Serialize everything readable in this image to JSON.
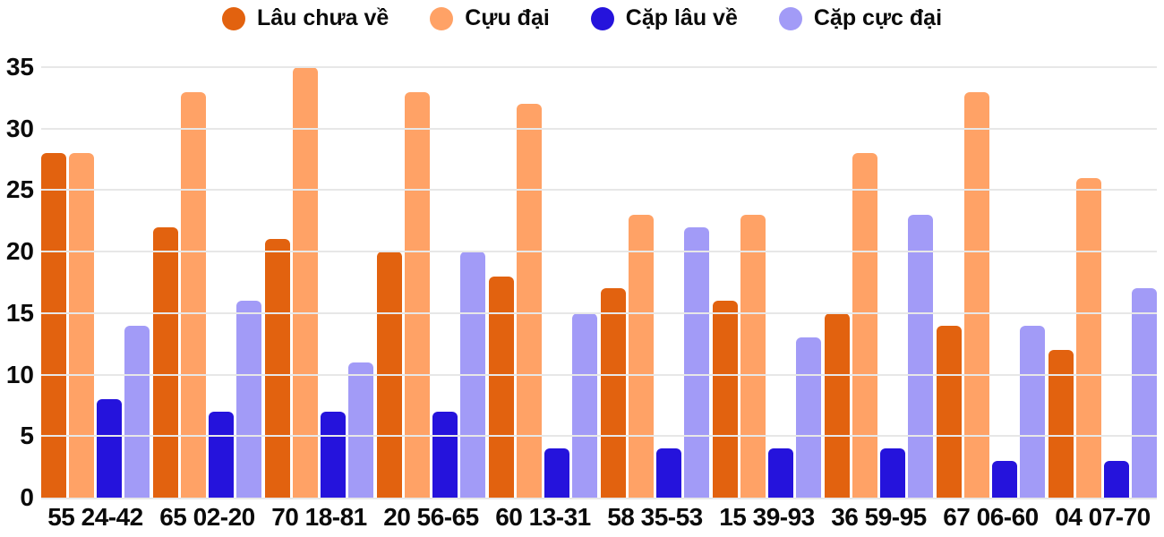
{
  "chart_data": {
    "type": "bar",
    "title": "",
    "xlabel": "",
    "ylabel": "",
    "ylim": [
      0,
      35
    ],
    "yticks": [
      0,
      5,
      10,
      15,
      20,
      25,
      30,
      35
    ],
    "grid": true,
    "legend_position": "top",
    "background_color": "#ffffff",
    "gridline_color": "#e7e7e7",
    "text_color": "#0b0b0b",
    "categories": [
      "55 24-42",
      "65 02-20",
      "70 18-81",
      "20 56-65",
      "60 13-31",
      "58 35-53",
      "15 39-93",
      "36 59-95",
      "67 06-60",
      "04 07-70"
    ],
    "series": [
      {
        "name": "Lâu chưa về",
        "color": "#e2620f",
        "values": [
          28,
          22,
          21,
          20,
          18,
          17,
          16,
          15,
          14,
          12
        ]
      },
      {
        "name": "Cựu đại",
        "color": "#ffa266",
        "values": [
          28,
          33,
          35,
          33,
          32,
          23,
          23,
          28,
          33,
          26
        ]
      },
      {
        "name": "Cặp lâu về",
        "color": "#2513dc",
        "values": [
          8,
          7,
          7,
          7,
          4,
          4,
          4,
          4,
          3,
          3
        ]
      },
      {
        "name": "Cặp cực đại",
        "color": "#a29bf7",
        "values": [
          14,
          16,
          11,
          20,
          15,
          22,
          13,
          23,
          14,
          17
        ]
      }
    ]
  }
}
